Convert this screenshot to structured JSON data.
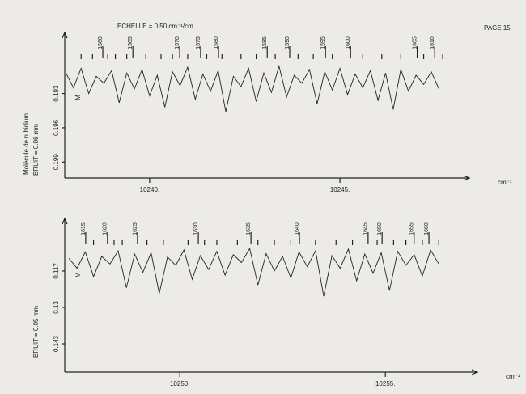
{
  "page": "PAGE 15",
  "molecule": "Molécule de rubidium",
  "chart_data": [
    {
      "type": "line",
      "title": "ECHELLE = 0.50 cm⁻¹/cm",
      "noise": "BRUIT = 0.06 mm",
      "y_label": "M",
      "x_label": "cm⁻¹",
      "color": "#222222",
      "x": [
        10237.8,
        10238.0,
        10238.2,
        10238.4,
        10238.6,
        10238.8,
        10239.0,
        10239.2,
        10239.4,
        10239.6,
        10239.8,
        10240.0,
        10240.2,
        10240.4,
        10240.6,
        10240.8,
        10241.0,
        10241.2,
        10241.4,
        10241.6,
        10241.8,
        10242.0,
        10242.2,
        10242.4,
        10242.6,
        10242.8,
        10243.0,
        10243.2,
        10243.4,
        10243.6,
        10243.8,
        10244.0,
        10244.2,
        10244.4,
        10244.6,
        10244.8,
        10245.0,
        10245.2,
        10245.4,
        10245.6,
        10245.8,
        10246.0,
        10246.2,
        10246.4,
        10246.6,
        10246.8,
        10247.0,
        10247.2,
        10247.4,
        10247.6
      ],
      "values": [
        0.1912,
        0.1925,
        0.1908,
        0.193,
        0.1915,
        0.1921,
        0.191,
        0.1938,
        0.1912,
        0.1926,
        0.1909,
        0.1932,
        0.1914,
        0.1942,
        0.1911,
        0.1923,
        0.1907,
        0.1935,
        0.1913,
        0.1928,
        0.191,
        0.1946,
        0.1915,
        0.1924,
        0.1908,
        0.1937,
        0.1912,
        0.1929,
        0.1906,
        0.1933,
        0.1914,
        0.1921,
        0.1909,
        0.1939,
        0.1911,
        0.1927,
        0.1908,
        0.1931,
        0.1913,
        0.1925,
        0.191,
        0.1936,
        0.1912,
        0.1944,
        0.1909,
        0.1928,
        0.1914,
        0.1922,
        0.1911,
        0.1926
      ],
      "xlim": [
        10237.77,
        10248.4
      ],
      "ylim": [
        0.188,
        0.2004
      ],
      "yticks": [
        0.193,
        0.196,
        0.199
      ],
      "xticks": [
        {
          "value": 10240,
          "label": "10240."
        },
        {
          "value": 10245,
          "label": "10245."
        }
      ],
      "lines": [
        {
          "label": "1560",
          "x": 10238.77
        },
        {
          "label": "1565",
          "x": 10239.56
        },
        {
          "label": "1570",
          "x": 10240.79
        },
        {
          "label": "1575",
          "x": 10241.34
        },
        {
          "label": "1580",
          "x": 10241.81
        },
        {
          "label": "1585",
          "x": 10243.09
        },
        {
          "label": "1590",
          "x": 10243.68
        },
        {
          "label": "1595",
          "x": 10244.62
        },
        {
          "label": "1600",
          "x": 10245.28
        },
        {
          "label": "1605",
          "x": 10247.03
        },
        {
          "label": "1610",
          "x": 10247.49
        }
      ],
      "line_marks": [
        10238.2,
        10238.5,
        10238.9,
        10239.1,
        10239.4,
        10239.9,
        10240.3,
        10240.6,
        10241.0,
        10241.5,
        10241.9,
        10242.4,
        10242.8,
        10243.3,
        10243.9,
        10244.3,
        10244.8,
        10245.6,
        10246.1,
        10246.6,
        10247.2,
        10247.7
      ]
    },
    {
      "type": "line",
      "noise": "BRUIT = 0.05 mm",
      "y_label": "M",
      "x_label": "cm⁻¹",
      "color": "#222222",
      "x": [
        10247.3,
        10247.5,
        10247.7,
        10247.9,
        10248.1,
        10248.3,
        10248.5,
        10248.7,
        10248.9,
        10249.1,
        10249.3,
        10249.5,
        10249.7,
        10249.9,
        10250.1,
        10250.3,
        10250.5,
        10250.7,
        10250.9,
        10251.1,
        10251.3,
        10251.5,
        10251.7,
        10251.9,
        10252.1,
        10252.3,
        10252.5,
        10252.7,
        10252.9,
        10253.1,
        10253.3,
        10253.5,
        10253.7,
        10253.9,
        10254.1,
        10254.3,
        10254.5,
        10254.7,
        10254.9,
        10255.1,
        10255.3,
        10255.5,
        10255.7,
        10255.9,
        10256.1,
        10256.3
      ],
      "values": [
        0.1125,
        0.116,
        0.1102,
        0.119,
        0.1118,
        0.1145,
        0.1098,
        0.123,
        0.111,
        0.1175,
        0.1105,
        0.125,
        0.112,
        0.115,
        0.1095,
        0.12,
        0.1115,
        0.1165,
        0.11,
        0.1185,
        0.1112,
        0.114,
        0.109,
        0.122,
        0.1108,
        0.117,
        0.1118,
        0.1195,
        0.1102,
        0.1155,
        0.1098,
        0.126,
        0.1115,
        0.116,
        0.1092,
        0.1205,
        0.111,
        0.1178,
        0.1105,
        0.124,
        0.11,
        0.115,
        0.1112,
        0.1188,
        0.1095,
        0.1145
      ],
      "xlim": [
        10247.2,
        10257.24
      ],
      "ylim": [
        0.0997,
        0.1531
      ],
      "yticks": [
        0.117,
        0.13,
        0.143
      ],
      "xticks": [
        {
          "value": 10250,
          "label": "10250."
        },
        {
          "value": 10255,
          "label": "10255."
        }
      ],
      "lines": [
        {
          "label": "1615",
          "x": 10247.71
        },
        {
          "label": "1620",
          "x": 10248.24
        },
        {
          "label": "1625",
          "x": 10248.97
        },
        {
          "label": "1630",
          "x": 10250.45
        },
        {
          "label": "1635",
          "x": 10251.73
        },
        {
          "label": "1640",
          "x": 10252.91
        },
        {
          "label": "1645",
          "x": 10254.58
        },
        {
          "label": "1650",
          "x": 10254.92
        },
        {
          "label": "1655",
          "x": 10255.7
        },
        {
          "label": "1660",
          "x": 10256.06
        }
      ],
      "line_marks": [
        10247.9,
        10248.4,
        10248.6,
        10249.2,
        10249.6,
        10250.2,
        10250.6,
        10250.9,
        10251.4,
        10251.9,
        10252.3,
        10252.7,
        10253.3,
        10253.8,
        10254.2,
        10254.8,
        10255.2,
        10255.5,
        10255.9,
        10256.3
      ]
    }
  ]
}
